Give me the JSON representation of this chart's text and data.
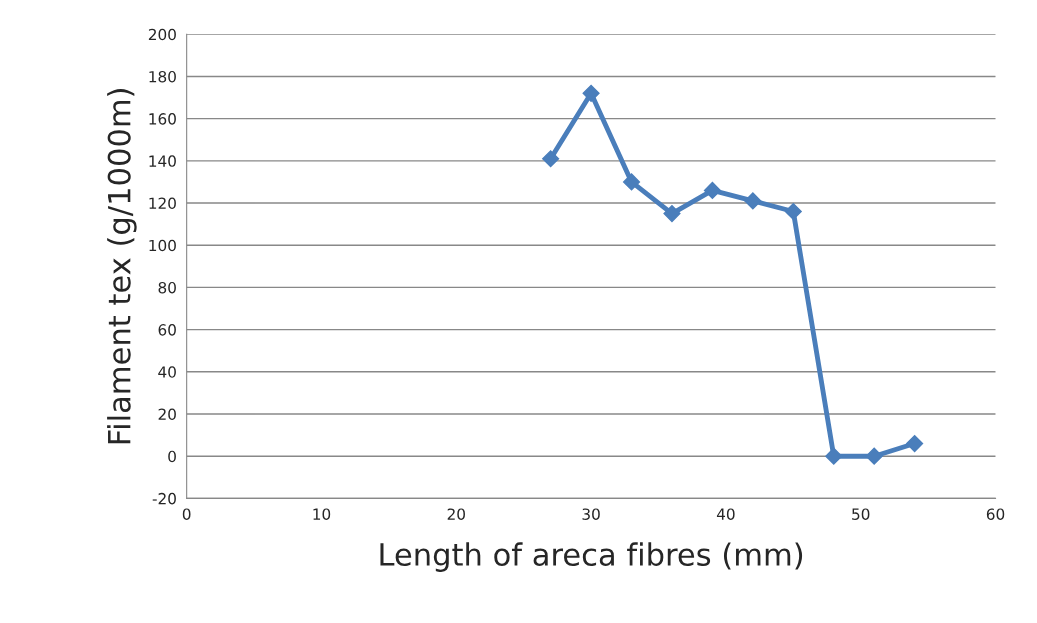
{
  "chart_data": {
    "type": "line",
    "xlabel": "Length of areca fibres (mm)",
    "ylabel": "Filament tex (g/1000m)",
    "x": [
      27,
      30,
      33,
      36,
      39,
      42,
      45,
      48,
      51,
      54
    ],
    "series": [
      {
        "color": "#4a7ebb",
        "values": [
          141,
          172,
          130,
          115,
          126,
          121,
          116,
          0,
          0,
          6
        ]
      }
    ],
    "xlim": [
      0,
      60
    ],
    "xticks": [
      0,
      10,
      20,
      30,
      40,
      50,
      60
    ],
    "ylim": [
      -20,
      200
    ],
    "yticks": [
      -20,
      0,
      20,
      40,
      60,
      80,
      100,
      120,
      140,
      160,
      180,
      200
    ],
    "grid": "y",
    "marker": "diamond",
    "line_style": "solid",
    "legend": false
  }
}
